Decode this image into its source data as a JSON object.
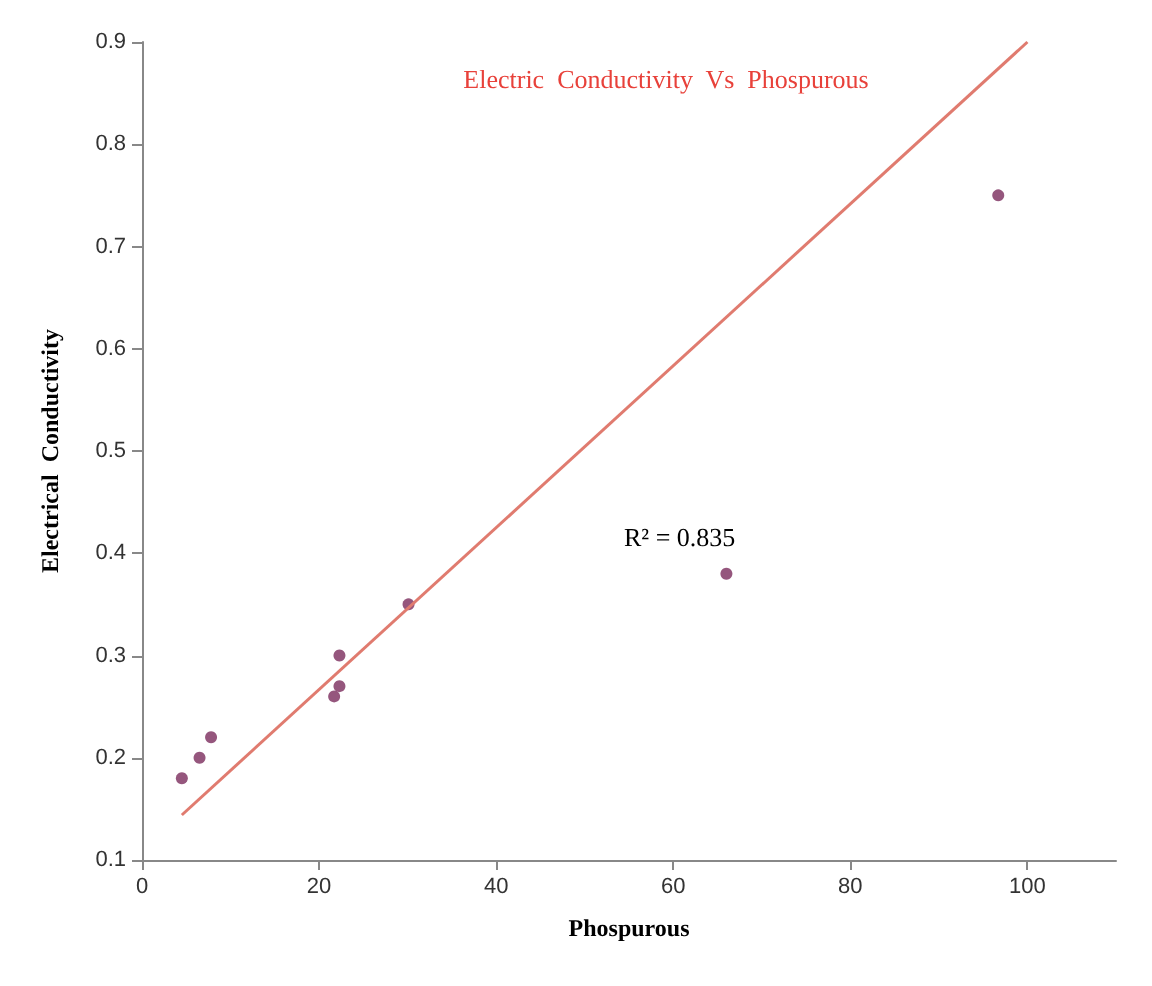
{
  "chart_data": {
    "type": "scatter",
    "title": "Electric  Conductivity  Vs  Phospurous",
    "xlabel": "Phospurous",
    "ylabel": "Electrical  Conductivity",
    "series": [
      {
        "color": "#7b2c5c",
        "x": [
          4.5,
          6.5,
          7.8,
          21.7,
          22.3,
          22.3,
          30.1,
          66,
          96.7
        ],
        "values": [
          0.18,
          0.2,
          0.22,
          0.26,
          0.27,
          0.3,
          0.35,
          0.38,
          0.75
        ],
        "marker": "circle"
      },
      {
        "type": "line",
        "color": "#e07b6f",
        "x": [
          4.5,
          100
        ],
        "values": [
          0.144,
          0.9
        ],
        "marker": "none",
        "line_style": "solid"
      }
    ],
    "annotations": [
      "R² = 0.835"
    ],
    "xlim": [
      0,
      110
    ],
    "xticks": [
      0,
      20,
      40,
      60,
      80,
      100
    ],
    "ylim": [
      0.1,
      0.9
    ],
    "yticks": [
      0.1,
      0.2,
      0.3,
      0.4,
      0.5,
      0.6,
      0.7,
      0.8,
      0.9
    ],
    "grid": false
  }
}
